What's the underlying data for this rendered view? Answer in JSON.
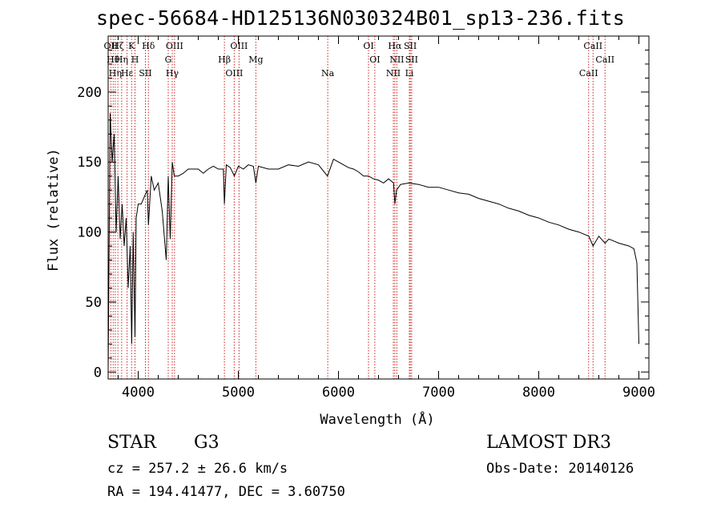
{
  "title": "spec-56684-HD125136N030324B01_sp13-236.fits",
  "info": {
    "class_label": "STAR",
    "subclass": "G3",
    "survey": "LAMOST DR3",
    "cz": "cz = 257.2 ± 26.6 km/s",
    "obs_date": "Obs-Date: 20140126",
    "coords": "RA = 194.41477, DEC =    3.60750"
  },
  "chart_data": {
    "type": "line",
    "title": "spec-56684-HD125136N030324B01_sp13-236.fits",
    "xlabel": "Wavelength (Å)",
    "ylabel": "Flux (relative)",
    "xlim": [
      3700,
      9100
    ],
    "ylim": [
      -5,
      240
    ],
    "x_ticks": [
      4000,
      5000,
      6000,
      7000,
      8000,
      9000
    ],
    "y_ticks": [
      0,
      50,
      100,
      150,
      200
    ],
    "grid": false,
    "series": [
      {
        "color": "#000000",
        "x": [
          3700,
          3720,
          3740,
          3760,
          3780,
          3800,
          3820,
          3840,
          3860,
          3880,
          3900,
          3920,
          3935,
          3950,
          3968,
          3980,
          4000,
          4030,
          4060,
          4090,
          4102,
          4130,
          4160,
          4200,
          4240,
          4280,
          4300,
          4320,
          4340,
          4360,
          4400,
          4450,
          4500,
          4550,
          4600,
          4650,
          4700,
          4750,
          4800,
          4850,
          4861,
          4880,
          4920,
          4960,
          5000,
          5050,
          5100,
          5150,
          5175,
          5200,
          5300,
          5400,
          5500,
          5600,
          5700,
          5800,
          5890,
          5950,
          6000,
          6050,
          6100,
          6150,
          6200,
          6250,
          6300,
          6350,
          6400,
          6450,
          6500,
          6550,
          6563,
          6580,
          6620,
          6700,
          6800,
          6900,
          7000,
          7100,
          7200,
          7300,
          7400,
          7500,
          7600,
          7700,
          7800,
          7900,
          8000,
          8100,
          8200,
          8300,
          8400,
          8500,
          8542,
          8600,
          8662,
          8700,
          8800,
          8900,
          8950,
          8980,
          9000
        ],
        "y": [
          0,
          185,
          150,
          170,
          100,
          140,
          95,
          120,
          90,
          110,
          60,
          90,
          20,
          100,
          25,
          110,
          120,
          120,
          125,
          130,
          105,
          140,
          130,
          135,
          115,
          80,
          140,
          95,
          150,
          140,
          140,
          142,
          145,
          145,
          145,
          142,
          145,
          147,
          145,
          145,
          120,
          148,
          146,
          140,
          147,
          145,
          148,
          147,
          135,
          147,
          145,
          145,
          148,
          147,
          150,
          148,
          140,
          152,
          150,
          148,
          146,
          145,
          143,
          140,
          140,
          138,
          137,
          135,
          138,
          135,
          120,
          130,
          134,
          135,
          134,
          132,
          132,
          130,
          128,
          127,
          124,
          122,
          120,
          117,
          115,
          112,
          110,
          107,
          105,
          102,
          100,
          97,
          90,
          97,
          92,
          95,
          92,
          90,
          88,
          78,
          20
        ]
      }
    ],
    "lines": [
      {
        "wavelength": 3727,
        "label": "OII"
      },
      {
        "wavelength": 3750,
        "label": "Hθ"
      },
      {
        "wavelength": 3771,
        "label": "Hη"
      },
      {
        "wavelength": 3797,
        "label": "Hζ"
      },
      {
        "wavelength": 3835,
        "label": "Hη"
      },
      {
        "wavelength": 3889,
        "label": "Hε"
      },
      {
        "wavelength": 3934,
        "label": "K"
      },
      {
        "wavelength": 3968,
        "label": "H"
      },
      {
        "wavelength": 4072,
        "label": "SII"
      },
      {
        "wavelength": 4102,
        "label": "Hδ"
      },
      {
        "wavelength": 4300,
        "label": "G"
      },
      {
        "wavelength": 4340,
        "label": "Hγ"
      },
      {
        "wavelength": 4363,
        "label": "OIII"
      },
      {
        "wavelength": 4861,
        "label": "Hβ"
      },
      {
        "wavelength": 4959,
        "label": "OIII"
      },
      {
        "wavelength": 5007,
        "label": "OIII"
      },
      {
        "wavelength": 5175,
        "label": "Mg"
      },
      {
        "wavelength": 5893,
        "label": "Na"
      },
      {
        "wavelength": 6300,
        "label": "OI"
      },
      {
        "wavelength": 6363,
        "label": "OI"
      },
      {
        "wavelength": 6548,
        "label": "NII"
      },
      {
        "wavelength": 6563,
        "label": "Hα"
      },
      {
        "wavelength": 6583,
        "label": "NII"
      },
      {
        "wavelength": 6708,
        "label": "Li"
      },
      {
        "wavelength": 6717,
        "label": "SII"
      },
      {
        "wavelength": 6731,
        "label": "SII"
      },
      {
        "wavelength": 8498,
        "label": "CaII"
      },
      {
        "wavelength": 8542,
        "label": "CaII"
      },
      {
        "wavelength": 8662,
        "label": "CaII"
      }
    ]
  }
}
